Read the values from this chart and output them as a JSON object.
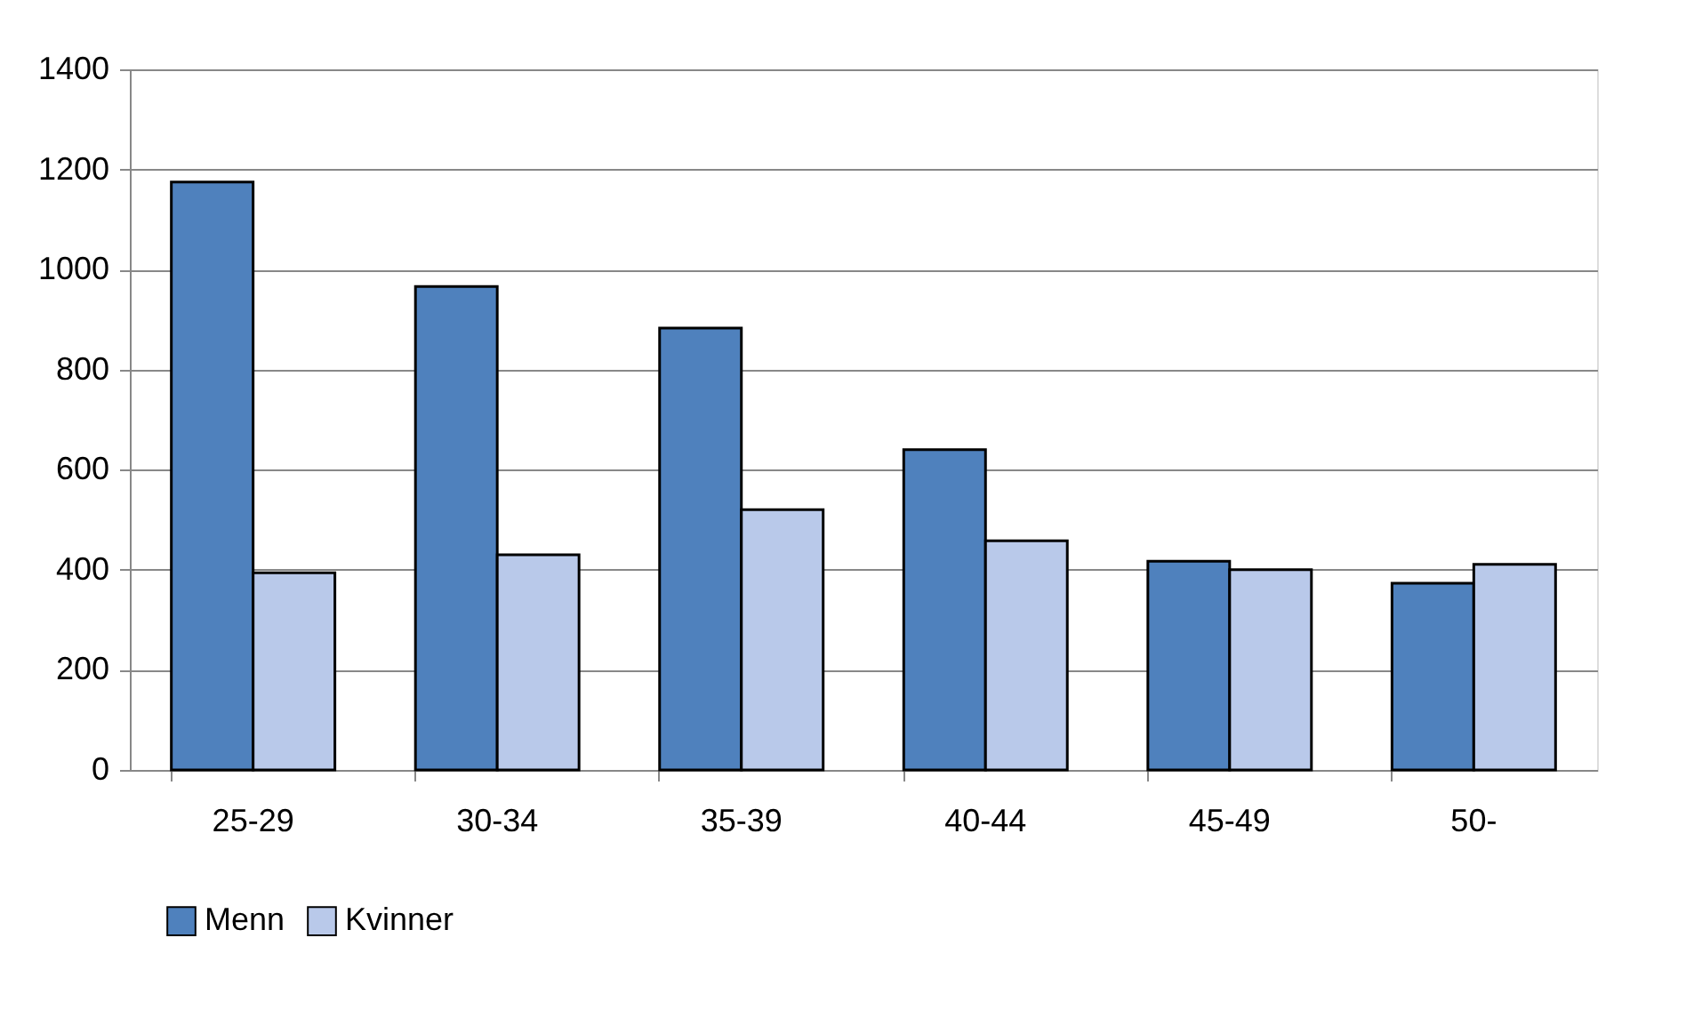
{
  "chart_data": {
    "type": "bar",
    "categories": [
      "25-29",
      "30-34",
      "35-39",
      "40-44",
      "45-49",
      "50-"
    ],
    "series": [
      {
        "name": "Menn",
        "color": "#4f81bd",
        "values": [
          1175,
          966,
          883,
          640,
          417,
          373
        ]
      },
      {
        "name": "Kvinner",
        "color": "#b9c9ea",
        "values": [
          394,
          430,
          520,
          458,
          400,
          411
        ]
      }
    ],
    "ylim": [
      0,
      1400
    ],
    "yticks": [
      0,
      200,
      400,
      600,
      800,
      1000,
      1200,
      1400
    ],
    "grid": "y",
    "legend": "bottom"
  }
}
